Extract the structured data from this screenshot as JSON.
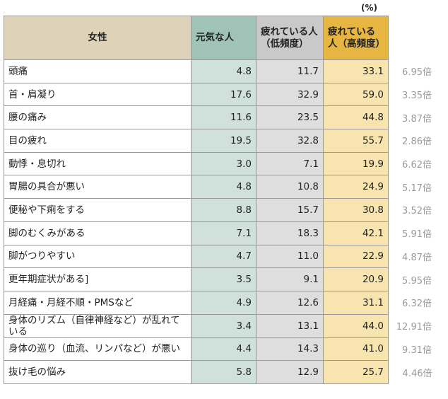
{
  "unit_label": "(%)",
  "header": {
    "corner": "女性",
    "col1": "元気な人",
    "col2": "疲れている人（低頻度）",
    "col3": "疲れている人（高頻度）"
  },
  "rows": [
    {
      "label": "頭痛",
      "v1": "4.8",
      "v2": "11.7",
      "v3": "33.1",
      "ratio": "6.95倍"
    },
    {
      "label": "首・肩凝り",
      "v1": "17.6",
      "v2": "32.9",
      "v3": "59.0",
      "ratio": "3.35倍"
    },
    {
      "label": "腰の痛み",
      "v1": "11.6",
      "v2": "23.5",
      "v3": "44.8",
      "ratio": "3.87倍"
    },
    {
      "label": "目の疲れ",
      "v1": "19.5",
      "v2": "32.8",
      "v3": "55.7",
      "ratio": "2.86倍"
    },
    {
      "label": "動悸・息切れ",
      "v1": "3.0",
      "v2": "7.1",
      "v3": "19.9",
      "ratio": "6.62倍"
    },
    {
      "label": "胃腸の具合が悪い",
      "v1": "4.8",
      "v2": "10.8",
      "v3": "24.9",
      "ratio": "5.17倍"
    },
    {
      "label": "便秘や下痢をする",
      "v1": "8.8",
      "v2": "15.7",
      "v3": "30.8",
      "ratio": "3.52倍"
    },
    {
      "label": "脚のむくみがある",
      "v1": "7.1",
      "v2": "18.3",
      "v3": "42.1",
      "ratio": "5.91倍"
    },
    {
      "label": "脚がつりやすい",
      "v1": "4.7",
      "v2": "11.0",
      "v3": "22.9",
      "ratio": "4.87倍"
    },
    {
      "label": "更年期症状がある]",
      "v1": "3.5",
      "v2": "9.1",
      "v3": "20.9",
      "ratio": "5.95倍"
    },
    {
      "label": "月経痛・月経不順・PMSなど",
      "v1": "4.9",
      "v2": "12.6",
      "v3": "31.1",
      "ratio": "6.32倍"
    },
    {
      "label": "身体のリズム（自律神経など）が乱れている",
      "v1": "3.4",
      "v2": "13.1",
      "v3": "44.0",
      "ratio": "12.91倍"
    },
    {
      "label": "身体の巡り（血流、リンパなど）が悪い",
      "v1": "4.4",
      "v2": "14.3",
      "v3": "41.0",
      "ratio": "9.31倍"
    },
    {
      "label": "抜け毛の悩み",
      "v1": "5.8",
      "v2": "12.9",
      "v3": "25.7",
      "ratio": "4.46倍"
    }
  ]
}
